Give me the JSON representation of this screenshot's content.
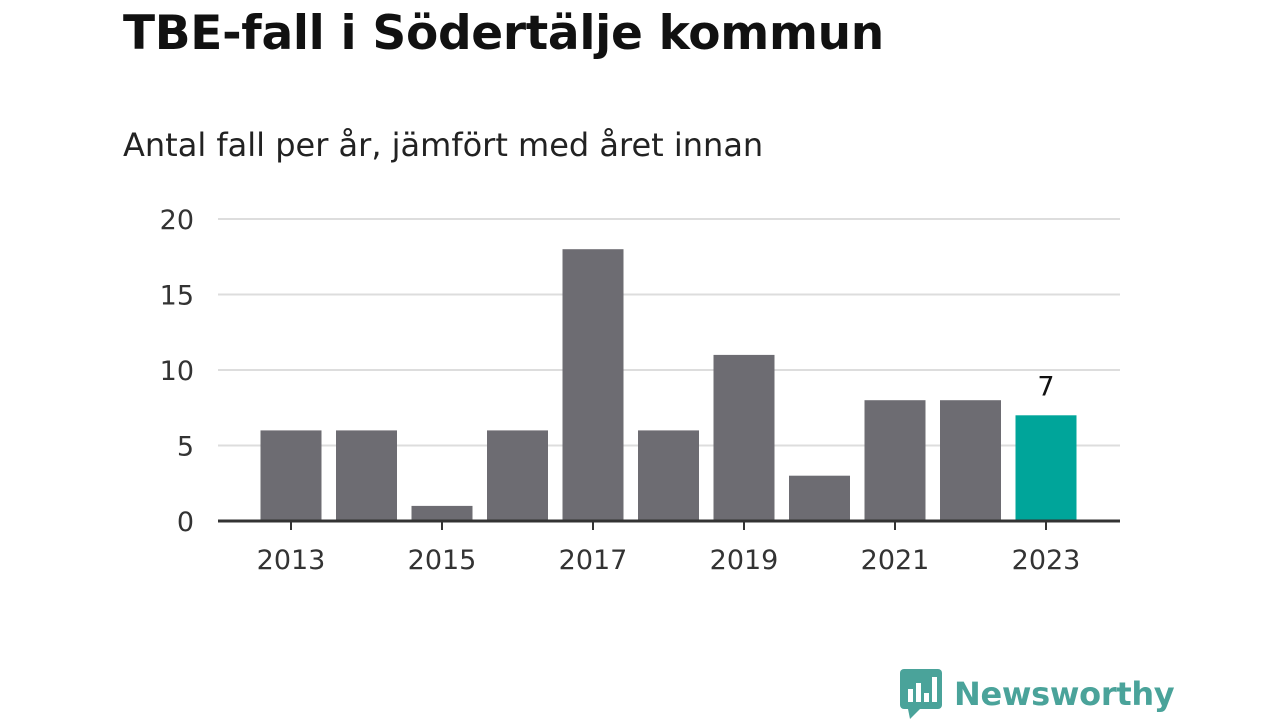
{
  "chart_data": {
    "type": "bar",
    "title": "TBE-fall i Södertälje kommun",
    "subtitle": "Antal fall per år, jämfört med året innan",
    "xlabel": "",
    "ylabel": "",
    "categories": [
      "2013",
      "2014",
      "2015",
      "2016",
      "2017",
      "2018",
      "2019",
      "2020",
      "2021",
      "2022",
      "2023"
    ],
    "values": [
      6,
      6,
      1,
      6,
      18,
      6,
      11,
      3,
      8,
      8,
      7
    ],
    "x_tick_labels": [
      "2013",
      "2015",
      "2017",
      "2019",
      "2021",
      "2023"
    ],
    "y_ticks": [
      0,
      5,
      10,
      15,
      20
    ],
    "ylim": [
      0,
      20
    ],
    "grid": true,
    "highlight": {
      "category": "2023",
      "label": "7"
    },
    "colors": {
      "bar": "#6d6c72",
      "highlight_bar": "#00a59a",
      "grid": "#dddddd",
      "axis": "#333333"
    }
  },
  "brand": {
    "name": "Newsworthy",
    "logo_icon": "bar-chart-speech-bubble-icon",
    "color": "#4aa39a"
  }
}
